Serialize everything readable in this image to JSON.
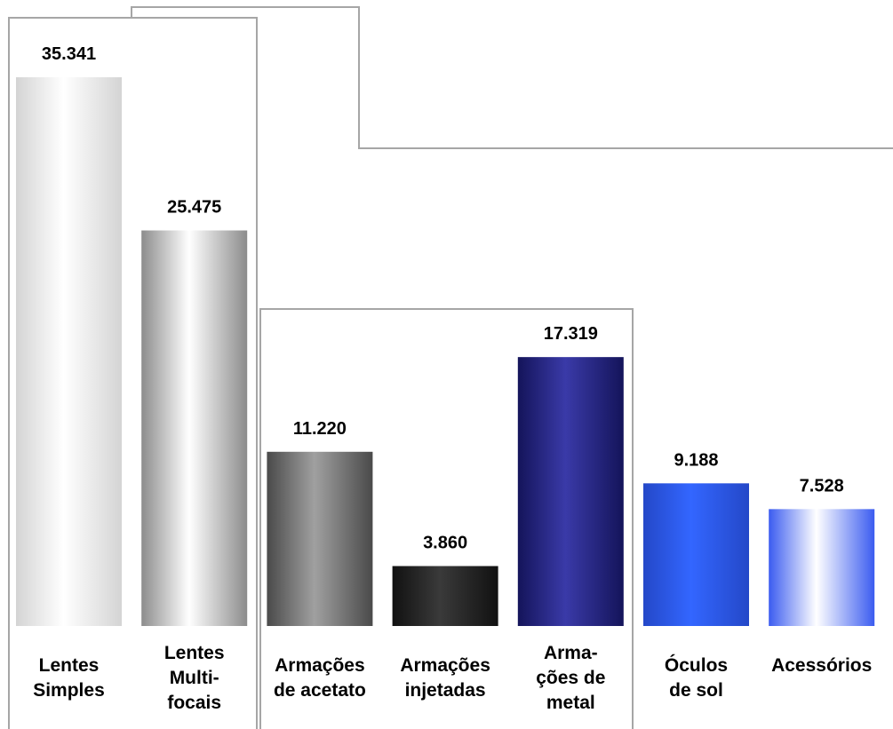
{
  "chart_data": {
    "type": "bar",
    "categories": [
      "Lentes\nSimples",
      "Lentes\nMulti-\nfocais",
      "Armações\nde acetato",
      "Armações\ninjetadas",
      "Arma-\nções de\nmetal",
      "Óculos\nde sol",
      "Acessórios"
    ],
    "values": [
      35341,
      25475,
      11220,
      3860,
      17319,
      9188,
      7528
    ],
    "value_labels": [
      "35.341",
      "25.475",
      "11.220",
      "3.860",
      "17.319",
      "9.188",
      "7.528"
    ],
    "colors": [
      [
        "#d4d4d4",
        "#ffffff"
      ],
      [
        "#8c8c8c",
        "#ffffff"
      ],
      [
        "#4a4a4a",
        "#a0a0a0"
      ],
      [
        "#111111",
        "#3a3a3a"
      ],
      [
        "#14145a",
        "#3a3aa8"
      ],
      [
        "#2448c8",
        "#3366ff"
      ],
      [
        "#3b5cf0",
        "#ffffff"
      ]
    ]
  }
}
